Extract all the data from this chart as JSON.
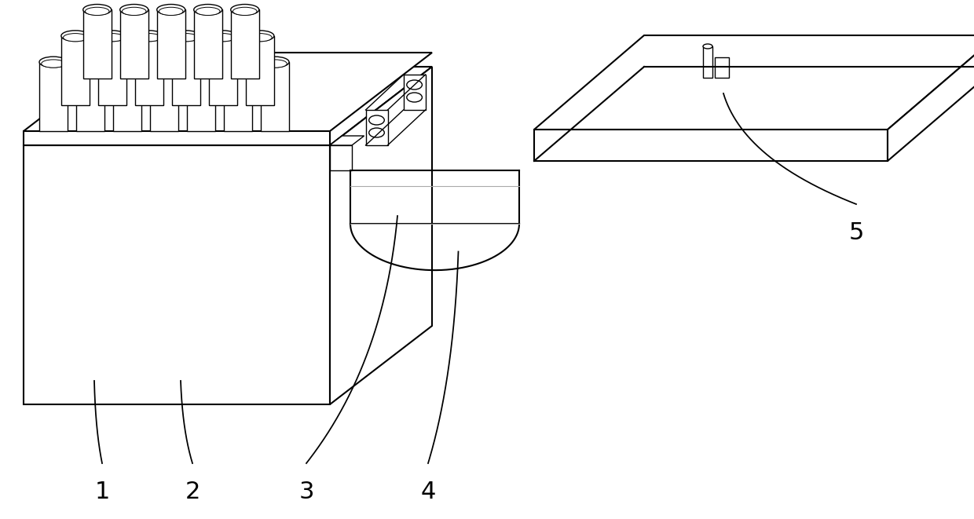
{
  "bg_color": "#ffffff",
  "lc": "#000000",
  "glc": "#aaaaaa",
  "lw": 1.5,
  "tlw": 1.0,
  "figsize": [
    12.4,
    6.61
  ],
  "label_fs": 20
}
